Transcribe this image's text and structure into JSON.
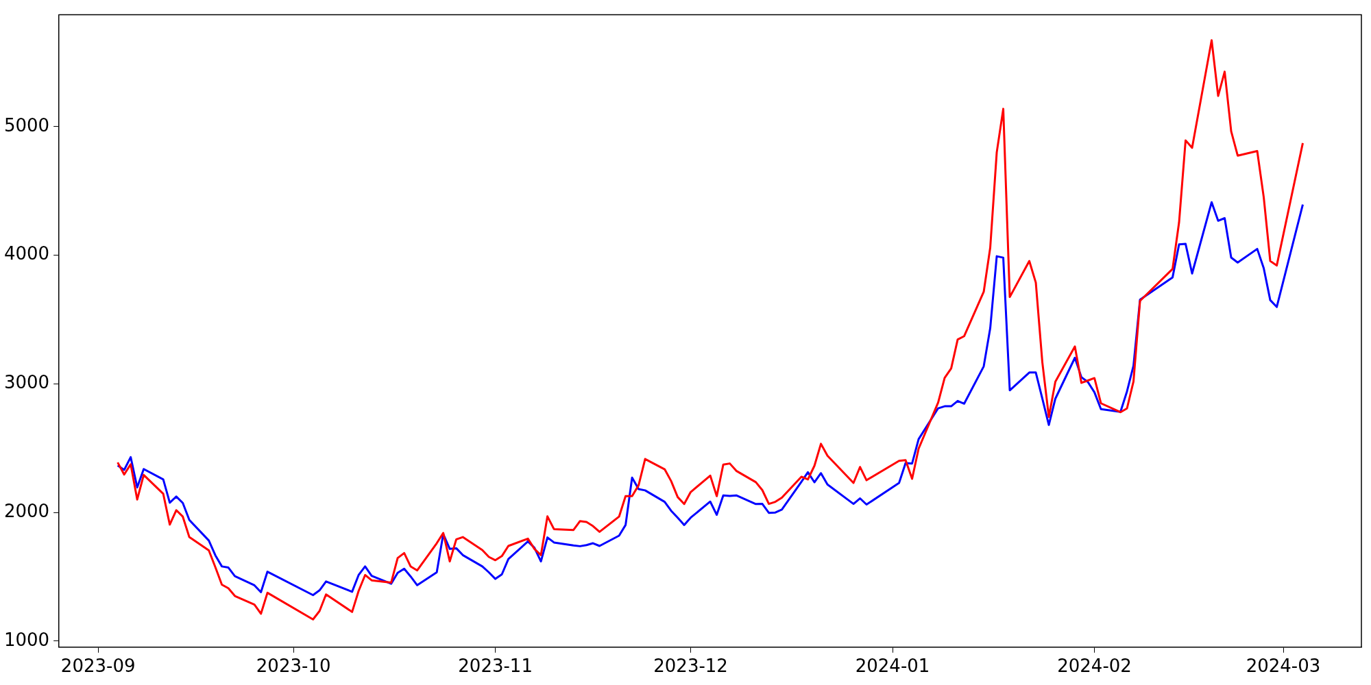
{
  "chart_data": {
    "type": "line",
    "x": [
      "2023-09-04",
      "2023-09-05",
      "2023-09-06",
      "2023-09-07",
      "2023-09-08",
      "2023-09-11",
      "2023-09-12",
      "2023-09-13",
      "2023-09-14",
      "2023-09-15",
      "2023-09-18",
      "2023-09-19",
      "2023-09-20",
      "2023-09-21",
      "2023-09-22",
      "2023-09-25",
      "2023-09-26",
      "2023-09-27",
      "2023-10-04",
      "2023-10-05",
      "2023-10-06",
      "2023-10-10",
      "2023-10-11",
      "2023-10-12",
      "2023-10-13",
      "2023-10-16",
      "2023-10-17",
      "2023-10-18",
      "2023-10-19",
      "2023-10-20",
      "2023-10-23",
      "2023-10-24",
      "2023-10-25",
      "2023-10-26",
      "2023-10-27",
      "2023-10-30",
      "2023-10-31",
      "2023-11-01",
      "2023-11-02",
      "2023-11-03",
      "2023-11-06",
      "2023-11-07",
      "2023-11-08",
      "2023-11-09",
      "2023-11-10",
      "2023-11-13",
      "2023-11-14",
      "2023-11-15",
      "2023-11-16",
      "2023-11-17",
      "2023-11-20",
      "2023-11-21",
      "2023-11-22",
      "2023-11-23",
      "2023-11-24",
      "2023-11-27",
      "2023-11-28",
      "2023-11-29",
      "2023-11-30",
      "2023-12-01",
      "2023-12-04",
      "2023-12-05",
      "2023-12-06",
      "2023-12-07",
      "2023-12-08",
      "2023-12-11",
      "2023-12-12",
      "2023-12-13",
      "2023-12-14",
      "2023-12-15",
      "2023-12-18",
      "2023-12-19",
      "2023-12-20",
      "2023-12-21",
      "2023-12-22",
      "2023-12-26",
      "2023-12-27",
      "2023-12-28",
      "2024-01-02",
      "2024-01-03",
      "2024-01-04",
      "2024-01-05",
      "2024-01-08",
      "2024-01-09",
      "2024-01-10",
      "2024-01-11",
      "2024-01-12",
      "2024-01-15",
      "2024-01-16",
      "2024-01-17",
      "2024-01-18",
      "2024-01-19",
      "2024-01-22",
      "2024-01-23",
      "2024-01-24",
      "2024-01-25",
      "2024-01-26",
      "2024-01-29",
      "2024-01-30",
      "2024-01-31",
      "2024-02-01",
      "2024-02-02",
      "2024-02-05",
      "2024-02-06",
      "2024-02-07",
      "2024-02-08",
      "2024-02-13",
      "2024-02-14",
      "2024-02-15",
      "2024-02-16",
      "2024-02-19",
      "2024-02-20",
      "2024-02-21",
      "2024-02-22",
      "2024-02-23",
      "2024-02-26",
      "2024-02-27",
      "2024-02-28",
      "2024-02-29",
      "2024-03-04"
    ],
    "series": [
      {
        "color": "#ff0000",
        "values": [
          2389,
          2295,
          2375,
          2101,
          2292,
          2145,
          1906,
          2018,
          1968,
          1809,
          1705,
          1575,
          1439,
          1411,
          1351,
          1284,
          1213,
          1376,
          1169,
          1234,
          1363,
          1227,
          1390,
          1514,
          1473,
          1455,
          1646,
          1685,
          1580,
          1550,
          1761,
          1841,
          1620,
          1791,
          1809,
          1708,
          1655,
          1629,
          1661,
          1740,
          1797,
          1717,
          1669,
          1970,
          1871,
          1864,
          1933,
          1926,
          1894,
          1850,
          1968,
          2127,
          2127,
          2212,
          2416,
          2336,
          2244,
          2120,
          2066,
          2159,
          2287,
          2127,
          2372,
          2381,
          2324,
          2236,
          2174,
          2067,
          2083,
          2115,
          2278,
          2257,
          2363,
          2534,
          2442,
          2230,
          2354,
          2251,
          2402,
          2407,
          2262,
          2496,
          2855,
          3047,
          3120,
          3345,
          3371,
          3716,
          4059,
          4800,
          5138,
          3675,
          3955,
          3787,
          3168,
          2743,
          3017,
          3291,
          3008,
          3026,
          3045,
          2849,
          2780,
          2809,
          3019,
          3645,
          3893,
          4256,
          4893,
          4835,
          5671,
          5238,
          5427,
          4964,
          4774,
          4810,
          4451,
          3955,
          3920,
          4872
        ]
      },
      {
        "color": "#0000ff",
        "values": [
          2366,
          2331,
          2430,
          2195,
          2338,
          2257,
          2076,
          2124,
          2074,
          1942,
          1782,
          1667,
          1581,
          1572,
          1505,
          1434,
          1381,
          1540,
          1358,
          1395,
          1464,
          1384,
          1514,
          1581,
          1508,
          1446,
          1531,
          1563,
          1502,
          1435,
          1535,
          1832,
          1717,
          1722,
          1669,
          1581,
          1535,
          1484,
          1519,
          1638,
          1775,
          1726,
          1620,
          1806,
          1767,
          1744,
          1738,
          1747,
          1761,
          1740,
          1820,
          1903,
          2271,
          2182,
          2172,
          2083,
          2013,
          1960,
          1903,
          1960,
          2085,
          1982,
          2133,
          2129,
          2133,
          2066,
          2067,
          1997,
          2000,
          2023,
          2239,
          2313,
          2235,
          2306,
          2218,
          2067,
          2110,
          2062,
          2230,
          2384,
          2381,
          2570,
          2810,
          2826,
          2826,
          2867,
          2846,
          3136,
          3433,
          3992,
          3981,
          2950,
          3088,
          3088,
          2885,
          2681,
          2885,
          3203,
          3052,
          3014,
          2935,
          2804,
          2782,
          2941,
          3141,
          3654,
          3828,
          4084,
          4088,
          3858,
          4412,
          4268,
          4288,
          3982,
          3943,
          4049,
          3899,
          3651,
          3598,
          4394
        ]
      }
    ],
    "xlim": [
      "2023-08-26",
      "2024-03-13"
    ],
    "xticks": [
      "2023-09",
      "2023-10",
      "2023-11",
      "2023-12",
      "2024-01",
      "2024-02",
      "2024-03"
    ],
    "ylim": [
      953,
      5869
    ],
    "yticks": [
      1000,
      2000,
      3000,
      4000,
      5000
    ],
    "grid": false,
    "legend": false,
    "marker": "none",
    "line_style": "solid"
  }
}
